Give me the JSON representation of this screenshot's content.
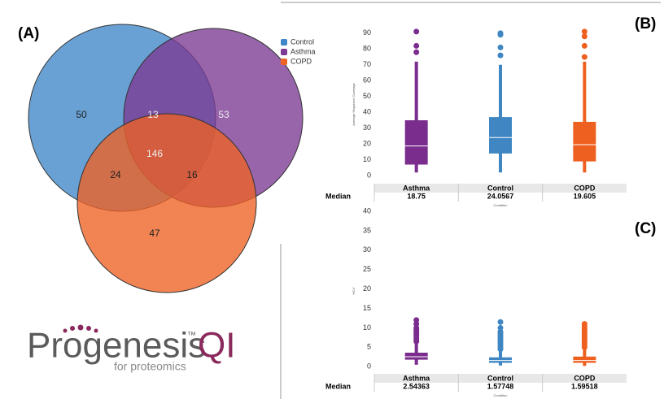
{
  "panel_labels": [
    "(A)",
    "(B)",
    "(C)"
  ],
  "logo": {
    "name": "Progenesis",
    "trademark": "™",
    "product": "QI",
    "tagline": "for proteomics"
  },
  "chart_data": [
    {
      "type": "venn",
      "sets": [
        {
          "name": "Control",
          "color": "#3f86c8"
        },
        {
          "name": "Asthma",
          "color": "#7b3a94"
        },
        {
          "name": "COPD",
          "color": "#ee6224"
        }
      ],
      "regions": [
        50,
        53,
        47,
        13,
        24,
        16,
        146
      ]
    },
    {
      "type": "box",
      "y_label": "Average Sequence Coverage",
      "x_label": "Condition",
      "table_header": "Median",
      "categories": [
        "Asthma",
        "Control",
        "COPD"
      ],
      "colors": [
        "#7b2d8e",
        "#3f86c2",
        "#ee6020"
      ],
      "ylim": [
        -3,
        93
      ],
      "yticks": [
        0,
        10,
        20,
        30,
        40,
        50,
        60,
        70,
        80,
        90
      ],
      "boxes": [
        {
          "whisker_low": 2,
          "q1": 7,
          "median": 18.75,
          "q3": 35,
          "whisker_high": 72,
          "outliers": [
            78,
            82,
            91
          ]
        },
        {
          "whisker_low": 2,
          "q1": 14,
          "median": 24.0567,
          "q3": 37,
          "whisker_high": 70,
          "outliers": [
            76,
            81,
            89,
            90
          ]
        },
        {
          "whisker_low": 2,
          "q1": 9,
          "median": 19.605,
          "q3": 34,
          "whisker_high": 72,
          "outliers": [
            75,
            82,
            88,
            91
          ]
        }
      ]
    },
    {
      "type": "box",
      "y_label": "%CV",
      "x_label": "Condition",
      "table_header": "Median",
      "categories": [
        "Asthma",
        "Control",
        "COPD"
      ],
      "colors": [
        "#7b2d8e",
        "#3f86c2",
        "#ee6020"
      ],
      "ylim": [
        -1,
        40
      ],
      "yticks": [
        0,
        5,
        10,
        15,
        20,
        25,
        30,
        35,
        40
      ],
      "boxes": [
        {
          "whisker_low": 0.5,
          "q1": 1.8,
          "median": 2.54363,
          "q3": 3.6,
          "whisker_high": 6,
          "outliers": [
            6.5,
            7,
            7.5,
            8,
            8.5,
            9,
            9.5,
            10,
            11,
            12
          ]
        },
        {
          "whisker_low": 0.3,
          "q1": 1,
          "median": 1.57748,
          "q3": 2.4,
          "whisker_high": 4,
          "outliers": [
            4.5,
            5,
            5.5,
            6,
            6.5,
            7,
            7.5,
            8,
            8.5,
            9,
            10,
            11.5
          ]
        },
        {
          "whisker_low": 0.2,
          "q1": 1,
          "median": 1.59518,
          "q3": 2.6,
          "whisker_high": 4.5,
          "outliers": [
            5,
            5.5,
            6,
            6.5,
            7,
            7.5,
            8,
            8.5,
            9,
            9.5,
            10,
            10.5,
            11
          ]
        }
      ]
    }
  ]
}
